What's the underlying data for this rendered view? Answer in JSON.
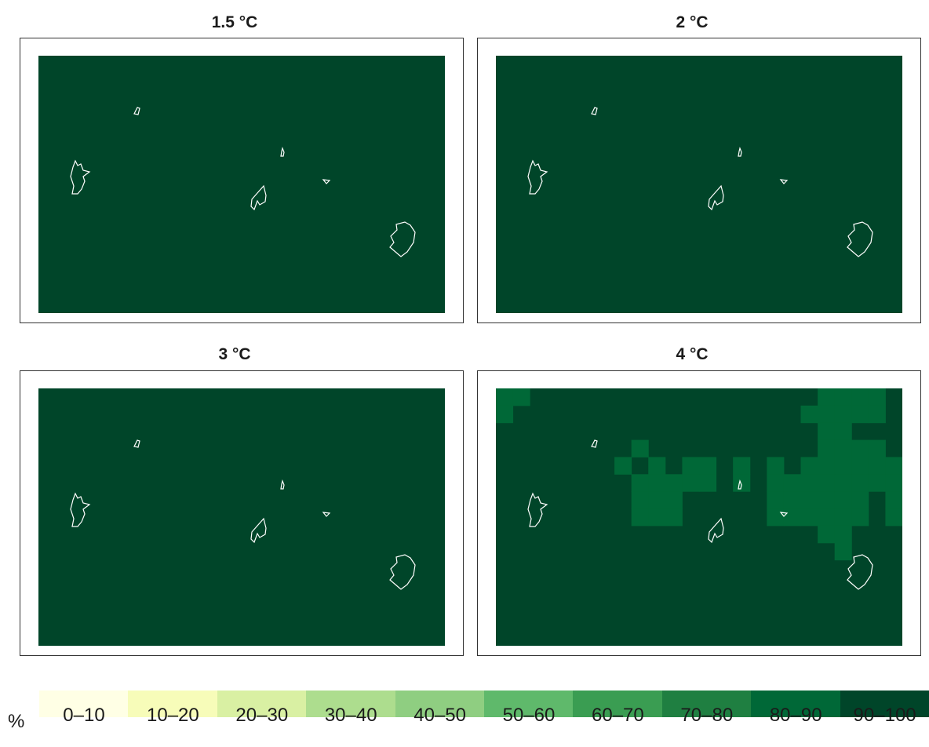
{
  "colors": {
    "background": "#004529",
    "anomaly": "#006837",
    "coast": "#ffffff"
  },
  "panels": [
    {
      "title": "1.5 °C",
      "value_class": "90–100"
    },
    {
      "title": "2 °C",
      "value_class": "90–100"
    },
    {
      "title": "3 °C",
      "value_class": "90–100"
    },
    {
      "title": "4 °C",
      "value_class": "90–100",
      "secondary_class": "80–90"
    }
  ],
  "legend": {
    "unit": "%",
    "classes": [
      {
        "label": "0–10",
        "color": "#ffffe5"
      },
      {
        "label": "10–20",
        "color": "#f7fcb9"
      },
      {
        "label": "20–30",
        "color": "#d9f0a3"
      },
      {
        "label": "30–40",
        "color": "#addd8e"
      },
      {
        "label": "40–50",
        "color": "#8fce81"
      },
      {
        "label": "50–60",
        "color": "#5fb96b"
      },
      {
        "label": "60–70",
        "color": "#3a9d52"
      },
      {
        "label": "70–80",
        "color": "#1f7f41"
      },
      {
        "label": "80–90",
        "color": "#006837"
      },
      {
        "label": "90–100",
        "color": "#004529"
      }
    ]
  }
}
